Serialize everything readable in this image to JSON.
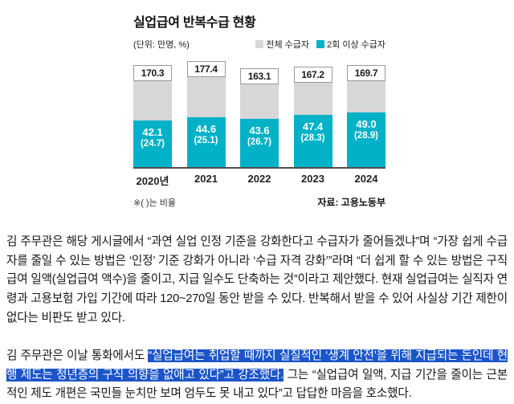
{
  "chart_data": {
    "type": "bar",
    "title": "실업급여 반복수급 현황",
    "unit_label": "(단위: 만명, %)",
    "legend": [
      {
        "label": "전체 수급자",
        "color": "#d7d7d7"
      },
      {
        "label": "2회 이상 수급자",
        "color": "#00b1c8"
      }
    ],
    "legend_position": "top",
    "grid": false,
    "ylim": [
      0,
      180
    ],
    "categories": [
      "2020년",
      "2021",
      "2022",
      "2023",
      "2024"
    ],
    "series": [
      {
        "name": "전체 수급자",
        "values": [
          170.3,
          177.4,
          163.1,
          167.2,
          169.7
        ],
        "labels": [
          "170.3",
          "177.4",
          "163.1",
          "167.2",
          "169.7"
        ]
      },
      {
        "name": "2회 이상 수급자",
        "values": [
          42.1,
          44.6,
          43.6,
          47.4,
          49.0
        ],
        "labels": [
          "42.1",
          "44.6",
          "43.6",
          "47.4",
          "49.0"
        ],
        "ratios": [
          24.7,
          25.1,
          26.7,
          28.3,
          28.9
        ],
        "ratio_labels": [
          "(24.7)",
          "(25.1)",
          "(26.7)",
          "(28.3)",
          "(28.9)"
        ]
      }
    ],
    "footnote": "※( )는 비율",
    "source": "자료: 고용노동부"
  },
  "article": {
    "paragraph1": "김 주무관은 해당 게시글에서 “과연 실업 인정 기준을 강화한다고 수급자가 줄어들겠냐”며 “가장 쉽게 수급자를 줄일 수 있는 방법은 ‘인정’ 기준 강화가 아니라 ‘수급 자격 강화’”라며 “더 쉽게 할 수 있는 방법은 구직급여 일액(실업급여 액수)을 줄이고, 지급 일수도 단축하는 것”이라고 제안했다. 현재 실업급여는 실직자 연령과 고용보험 가입 기간에 따라 120~270일 동안 받을 수 있다. 반복해서 받을 수 있어 사실상 기간 제한이 없다는 비판도 받고 있다.",
    "paragraph2_before": "김 주무관은 이날 통화에서도 ",
    "paragraph2_highlight": "“실업급여는 취업할 때까지 실질적인 ‘생계 안전’을 위해 지급되는 돈인데 현행 제도는 청년층의 구직 의향을 없애고 있다”고 강조했다.",
    "paragraph2_after": " 그는 “실업급여 일액, 지급 기간을 줄이는 근본적인 제도 개편은 국민들 눈치만 보며 엄두도 못 내고 있다”고 답답한 마음을 호소했다.",
    "highlight_color": "#1b55c8"
  }
}
